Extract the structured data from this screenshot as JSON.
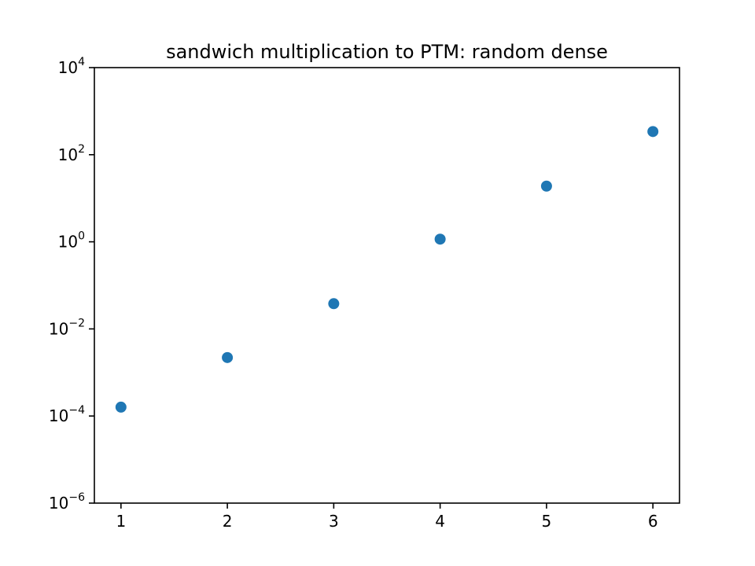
{
  "chart_data": {
    "type": "scatter",
    "title": "sandwich multiplication to PTM: random dense",
    "xlabel": "",
    "ylabel": "",
    "x": [
      1,
      2,
      3,
      4,
      5,
      6
    ],
    "y": [
      0.00016,
      0.0022,
      0.038,
      1.15,
      19,
      340
    ],
    "xlim": [
      0.75,
      6.25
    ],
    "ylim": [
      1e-06,
      10000
    ],
    "yscale": "log",
    "xticks": [
      1,
      2,
      3,
      4,
      5,
      6
    ],
    "xtick_labels": [
      "1",
      "2",
      "3",
      "4",
      "5",
      "6"
    ],
    "yticks": [
      1e-06,
      0.0001,
      0.01,
      1,
      100,
      10000
    ],
    "ytick_labels": [
      {
        "base": "10",
        "exp": "−6"
      },
      {
        "base": "10",
        "exp": "−4"
      },
      {
        "base": "10",
        "exp": "−2"
      },
      {
        "base": "10",
        "exp": "0"
      },
      {
        "base": "10",
        "exp": "2"
      },
      {
        "base": "10",
        "exp": "4"
      }
    ],
    "grid": false,
    "colors": {
      "marker": "#1f77b4",
      "axes": "#000000",
      "background": "#ffffff"
    }
  }
}
